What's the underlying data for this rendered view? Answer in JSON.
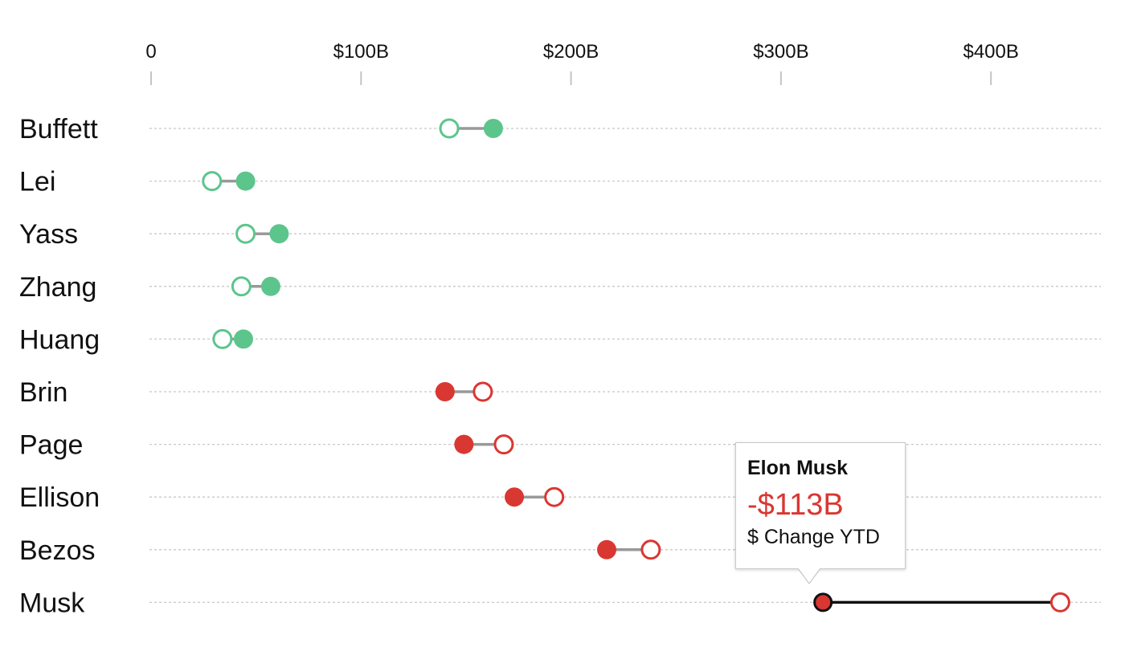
{
  "chart_data": {
    "type": "dumbbell",
    "title": "",
    "xlabel": "",
    "ylabel": "",
    "x_ticks": [
      "0",
      "$100B",
      "$200B",
      "$300B",
      "$400B"
    ],
    "x_tick_values": [
      0,
      100,
      200,
      300,
      400
    ],
    "xlim": [
      0,
      455
    ],
    "unit": "$B",
    "grid": true,
    "legend": "none",
    "colors": {
      "gain": "#5cc58c",
      "loss": "#d93732",
      "connector": "#999999",
      "connector_active": "#111111"
    },
    "series": [
      {
        "name": "Buffett",
        "start": 142,
        "end": 163,
        "direction": "gain"
      },
      {
        "name": "Lei",
        "start": 29,
        "end": 45,
        "direction": "gain"
      },
      {
        "name": "Yass",
        "start": 45,
        "end": 61,
        "direction": "gain"
      },
      {
        "name": "Zhang",
        "start": 43,
        "end": 57,
        "direction": "gain"
      },
      {
        "name": "Huang",
        "start": 34,
        "end": 44,
        "direction": "gain"
      },
      {
        "name": "Brin",
        "start": 158,
        "end": 140,
        "direction": "loss"
      },
      {
        "name": "Page",
        "start": 168,
        "end": 149,
        "direction": "loss"
      },
      {
        "name": "Ellison",
        "start": 192,
        "end": 173,
        "direction": "loss"
      },
      {
        "name": "Bezos",
        "start": 238,
        "end": 217,
        "direction": "loss"
      },
      {
        "name": "Musk",
        "start": 433,
        "end": 320,
        "direction": "loss",
        "highlighted": true
      }
    ],
    "tooltip": {
      "name": "Elon Musk",
      "value": "-$113B",
      "caption": "$ Change YTD"
    }
  }
}
